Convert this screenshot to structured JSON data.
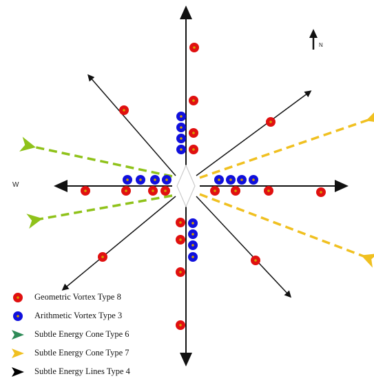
{
  "direction_labels": {
    "west": "W",
    "north": "N"
  },
  "legend": [
    {
      "label": "Geometric Vortex Type 8",
      "color": "#e01010",
      "marker": "red-dot"
    },
    {
      "label": "Arithmetic Vortex  Type 3",
      "color": "#1010dd",
      "marker": "blue-dot"
    },
    {
      "label": "Subtle Energy Cone Type 6",
      "color": "#2e8b57",
      "marker": "green-arrow"
    },
    {
      "label": "Subtle Energy  Cone Type 7",
      "color": "#f0c020",
      "marker": "yellow-arrow"
    },
    {
      "label": "Subtle Energy Lines  Type 4",
      "color": "#000000",
      "marker": "black-arrow"
    }
  ],
  "colors": {
    "geometric_vortex": "#e01010",
    "arithmetic_vortex": "#1010dd",
    "cone_type6": "#8fc21a",
    "cone_type7": "#f0c020",
    "energy_lines": "#111111"
  }
}
